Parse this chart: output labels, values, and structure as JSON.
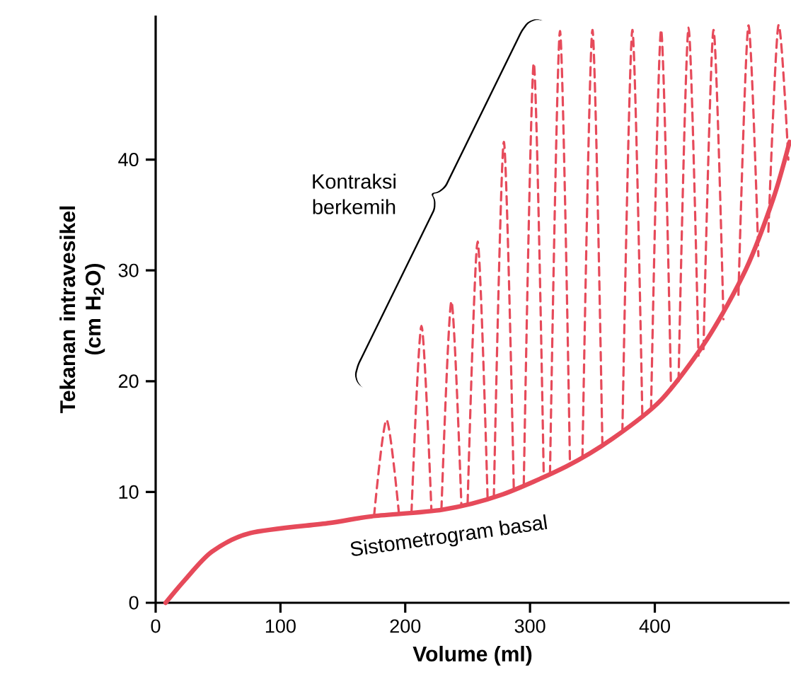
{
  "chart_data": {
    "type": "line",
    "xlabel": "Volume (ml)",
    "ylabel": "Tekanan intravesikel (cm H$_{2}$O)",
    "xlim": [
      0,
      508
    ],
    "ylim": [
      0,
      53
    ],
    "xticks": [
      0,
      100,
      200,
      300,
      400
    ],
    "yticks": [
      0,
      10,
      20,
      30,
      40
    ],
    "grid": false,
    "marker": "none",
    "annotations": [
      "Kontraksi berkemih",
      "Sistometrogram basal"
    ],
    "series": [
      {
        "color": "#e64a5a",
        "line_style": "solid",
        "x": [
          8,
          23,
          45,
          76,
          139,
          173,
          230,
          276,
          329,
          366,
          405,
          442,
          473,
          495,
          508
        ],
        "values": [
          0,
          2.0,
          4.6,
          6.3,
          7.2,
          7.8,
          8.4,
          9.7,
          12.3,
          14.8,
          18.3,
          23.8,
          30.1,
          36.5,
          41.6
        ]
      },
      {
        "color": "#e64a5a",
        "line_style": "dashed",
        "x": [
          175,
          185,
          195
        ],
        "values": [
          7.8,
          16.5,
          8.0
        ]
      },
      {
        "color": "#e64a5a",
        "line_style": "dashed",
        "x": [
          205,
          213,
          221
        ],
        "values": [
          8.1,
          25.0,
          8.3
        ]
      },
      {
        "color": "#e64a5a",
        "line_style": "dashed",
        "x": [
          229,
          237,
          245
        ],
        "values": [
          8.4,
          27.2,
          8.8
        ]
      },
      {
        "color": "#e64a5a",
        "line_style": "dashed",
        "x": [
          250,
          258,
          266
        ],
        "values": [
          9.0,
          32.6,
          9.4
        ]
      },
      {
        "color": "#e64a5a",
        "line_style": "dashed",
        "x": [
          271,
          279,
          287
        ],
        "values": [
          9.5,
          41.6,
          10.2
        ]
      },
      {
        "color": "#e64a5a",
        "line_style": "dashed",
        "x": [
          295,
          303,
          311
        ],
        "values": [
          10.7,
          48.7,
          11.3
        ]
      },
      {
        "color": "#e64a5a",
        "line_style": "dashed",
        "x": [
          316,
          324,
          332
        ],
        "values": [
          11.6,
          51.6,
          12.5
        ]
      },
      {
        "color": "#e64a5a",
        "line_style": "dashed",
        "x": [
          342,
          350,
          358
        ],
        "values": [
          13.1,
          51.7,
          14.1
        ]
      },
      {
        "color": "#e64a5a",
        "line_style": "dashed",
        "x": [
          374,
          382,
          390
        ],
        "values": [
          15.4,
          51.7,
          16.8
        ]
      },
      {
        "color": "#e64a5a",
        "line_style": "dashed",
        "x": [
          397,
          405,
          413
        ],
        "values": [
          17.5,
          51.7,
          19.2
        ]
      },
      {
        "color": "#e64a5a",
        "line_style": "dashed",
        "x": [
          419,
          427,
          435
        ],
        "values": [
          20.0,
          51.9,
          22.3
        ]
      },
      {
        "color": "#e64a5a",
        "line_style": "dashed",
        "x": [
          439,
          447,
          455
        ],
        "values": [
          22.9,
          51.7,
          25.6
        ]
      },
      {
        "color": "#e64a5a",
        "line_style": "dashed",
        "x": [
          467,
          475,
          483
        ],
        "values": [
          27.8,
          52.1,
          31.3
        ]
      },
      {
        "color": "#e64a5a",
        "line_style": "dashed",
        "x": [
          491,
          499,
          507
        ],
        "values": [
          33.5,
          52.1,
          40
        ]
      }
    ]
  }
}
